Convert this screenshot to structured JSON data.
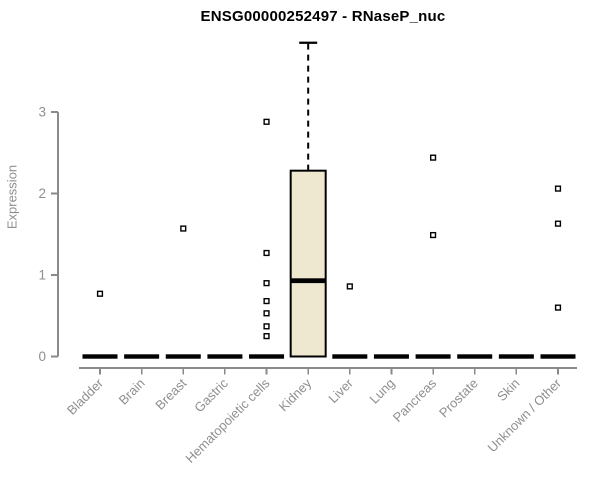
{
  "chart_data": {
    "type": "boxplot",
    "title": "ENSG00000252497 - RNaseP_nuc",
    "ylabel": "Expression",
    "xlabel": "",
    "yticks": [
      0,
      1,
      2,
      3
    ],
    "ylim": [
      0,
      3.9
    ],
    "grid": false,
    "legend": false,
    "categories": [
      "Bladder",
      "Brain",
      "Breast",
      "Gastric",
      "Hematopoietic cells",
      "Kidney",
      "Liver",
      "Lung",
      "Pancreas",
      "Prostate",
      "Skin",
      "Unknown / Other"
    ],
    "boxes": [
      {
        "category": "Bladder",
        "whisker_low": 0,
        "q1": 0,
        "median": 0,
        "q3": 0,
        "whisker_high": 0,
        "outliers": [
          0.77
        ]
      },
      {
        "category": "Brain",
        "whisker_low": 0,
        "q1": 0,
        "median": 0,
        "q3": 0,
        "whisker_high": 0,
        "outliers": []
      },
      {
        "category": "Breast",
        "whisker_low": 0,
        "q1": 0,
        "median": 0,
        "q3": 0,
        "whisker_high": 0,
        "outliers": [
          1.57
        ]
      },
      {
        "category": "Gastric",
        "whisker_low": 0,
        "q1": 0,
        "median": 0,
        "q3": 0,
        "whisker_high": 0,
        "outliers": []
      },
      {
        "category": "Hematopoietic cells",
        "whisker_low": 0,
        "q1": 0,
        "median": 0,
        "q3": 0,
        "whisker_high": 0,
        "outliers": [
          2.88,
          1.27,
          0.9,
          0.68,
          0.53,
          0.37,
          0.25
        ]
      },
      {
        "category": "Kidney",
        "whisker_low": 0,
        "q1": 0,
        "median": 0.93,
        "q3": 2.28,
        "whisker_high": 3.85,
        "outliers": []
      },
      {
        "category": "Liver",
        "whisker_low": 0,
        "q1": 0,
        "median": 0,
        "q3": 0,
        "whisker_high": 0,
        "outliers": [
          0.86
        ]
      },
      {
        "category": "Lung",
        "whisker_low": 0,
        "q1": 0,
        "median": 0,
        "q3": 0,
        "whisker_high": 0,
        "outliers": []
      },
      {
        "category": "Pancreas",
        "whisker_low": 0,
        "q1": 0,
        "median": 0,
        "q3": 0,
        "whisker_high": 0,
        "outliers": [
          2.44,
          1.49
        ]
      },
      {
        "category": "Prostate",
        "whisker_low": 0,
        "q1": 0,
        "median": 0,
        "q3": 0,
        "whisker_high": 0,
        "outliers": []
      },
      {
        "category": "Skin",
        "whisker_low": 0,
        "q1": 0,
        "median": 0,
        "q3": 0,
        "whisker_high": 0,
        "outliers": []
      },
      {
        "category": "Unknown / Other",
        "whisker_low": 0,
        "q1": 0,
        "median": 0,
        "q3": 0,
        "whisker_high": 0,
        "outliers": [
          2.06,
          1.63,
          0.6
        ]
      }
    ],
    "colors": {
      "box_fill": "#EDE8CF",
      "box_line": "#000000",
      "median_line": "#000000",
      "axis": "#8a8a8a",
      "tick_text": "#8f8f8f",
      "title_text": "#000000",
      "background": "#ffffff"
    },
    "layout": {
      "legend_position": "none",
      "x_label_rotation_deg": 45
    }
  }
}
